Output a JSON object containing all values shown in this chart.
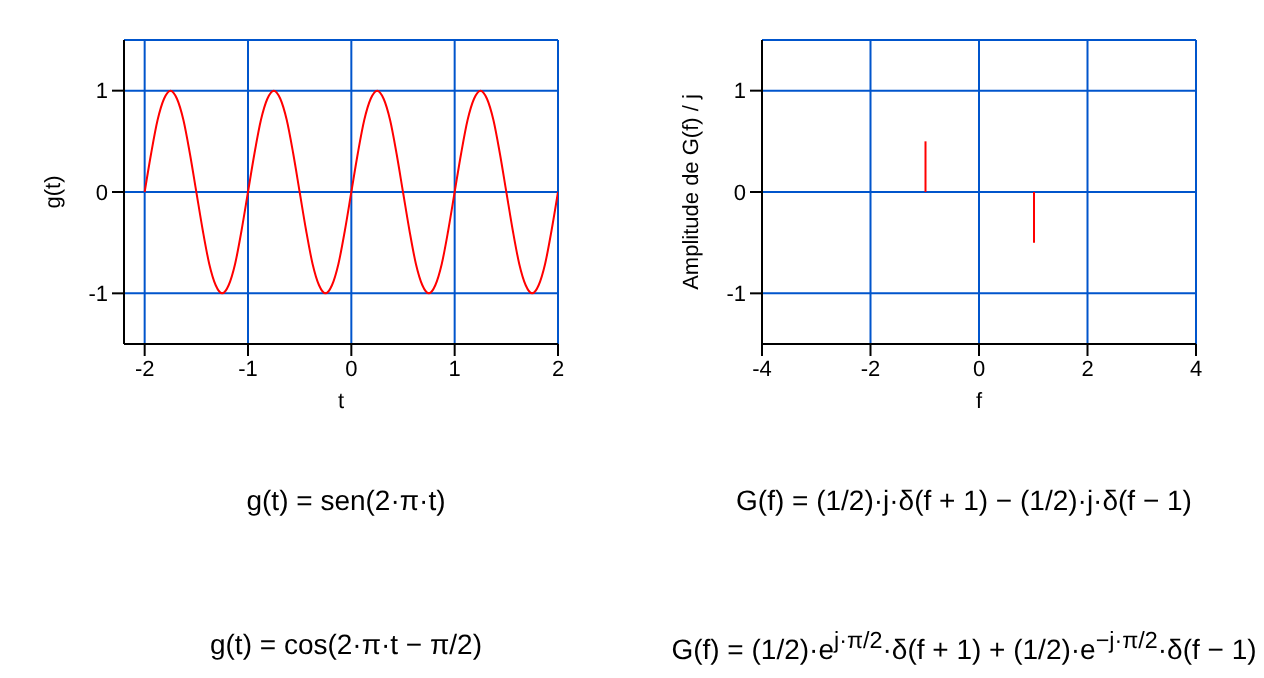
{
  "chart_data": [
    {
      "type": "line",
      "xlabel": "t",
      "ylabel": "g(t)",
      "xlim": [
        -2.2,
        2
      ],
      "xticks": [
        -2,
        -1,
        0,
        1,
        2
      ],
      "ylim": [
        -1.5,
        1.5
      ],
      "yticks": [
        -1,
        0,
        1
      ],
      "grid": true,
      "marker": "none",
      "series": [
        {
          "color": "#ff0000",
          "x": [
            -2,
            -1.9375,
            -1.875,
            -1.8125,
            -1.75,
            -1.6875,
            -1.625,
            -1.5625,
            -1.5,
            -1.4375,
            -1.375,
            -1.3125,
            -1.25,
            -1.1875,
            -1.125,
            -1.0625,
            -1,
            -0.9375,
            -0.875,
            -0.8125,
            -0.75,
            -0.6875,
            -0.625,
            -0.5625,
            -0.5,
            -0.4375,
            -0.375,
            -0.3125,
            -0.25,
            -0.1875,
            -0.125,
            -0.0625,
            0,
            0.0625,
            0.125,
            0.1875,
            0.25,
            0.3125,
            0.375,
            0.4375,
            0.5,
            0.5625,
            0.625,
            0.6875,
            0.75,
            0.8125,
            0.875,
            0.9375,
            1,
            1.0625,
            1.125,
            1.1875,
            1.25,
            1.3125,
            1.375,
            1.4375,
            1.5,
            1.5625,
            1.625,
            1.6875,
            1.75,
            1.8125,
            1.875,
            1.9375,
            2
          ],
          "values": [
            0,
            0.38,
            0.71,
            0.92,
            1,
            0.92,
            0.71,
            0.38,
            0,
            -0.38,
            -0.71,
            -0.92,
            -1,
            -0.92,
            -0.71,
            -0.38,
            0,
            0.38,
            0.71,
            0.92,
            1,
            0.92,
            0.71,
            0.38,
            0,
            -0.38,
            -0.71,
            -0.92,
            -1,
            -0.92,
            -0.71,
            -0.38,
            0,
            0.38,
            0.71,
            0.92,
            1,
            0.92,
            0.71,
            0.38,
            0,
            -0.38,
            -0.71,
            -0.92,
            -1,
            -0.92,
            -0.71,
            -0.38,
            0,
            0.38,
            0.71,
            0.92,
            1,
            0.92,
            0.71,
            0.38,
            0,
            -0.38,
            -0.71,
            -0.92,
            -1,
            -0.92,
            -0.71,
            -0.38,
            0
          ]
        }
      ],
      "annotations": [
        "g(t) = sen(2·π·t)",
        "g(t) = cos(2·π·t − π/2)"
      ]
    },
    {
      "type": "bar",
      "xlabel": "f",
      "ylabel": "Amplitude de G(f) / j",
      "x": [
        -1,
        1
      ],
      "values": [
        0.5,
        -0.5
      ],
      "color": "#ff0000",
      "xlim": [
        -4,
        4
      ],
      "xticks": [
        -4,
        -2,
        0,
        2,
        4
      ],
      "ylim": [
        -1.5,
        1.5
      ],
      "yticks": [
        -1,
        0,
        1
      ],
      "grid": true,
      "annotations": [
        "G(f) = (1/2)·j·δ(f + 1) − (1/2)·j·δ(f − 1)",
        "G(f) = (1/2)·e$^{j·π/2}$·δ(f + 1) + (1/2)·e$^{−j·π/2}$·δ(f − 1)"
      ]
    }
  ]
}
